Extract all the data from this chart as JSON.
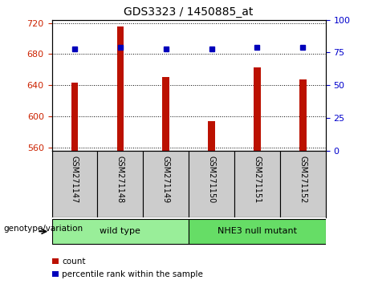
{
  "title": "GDS3323 / 1450885_at",
  "samples": [
    "GSM271147",
    "GSM271148",
    "GSM271149",
    "GSM271150",
    "GSM271151",
    "GSM271152"
  ],
  "count_values": [
    643,
    716,
    651,
    594,
    663,
    647
  ],
  "percentile_values": [
    78,
    79,
    78,
    78,
    79,
    79
  ],
  "ylim_left": [
    556,
    724
  ],
  "yticks_left": [
    560,
    600,
    640,
    680,
    720
  ],
  "ylim_right": [
    0,
    100
  ],
  "yticks_right": [
    0,
    25,
    50,
    75,
    100
  ],
  "bar_color": "#bb1100",
  "dot_color": "#0000bb",
  "groups": [
    {
      "label": "wild type",
      "indices": [
        0,
        1,
        2
      ],
      "color": "#99ee99"
    },
    {
      "label": "NHE3 null mutant",
      "indices": [
        3,
        4,
        5
      ],
      "color": "#66dd66"
    }
  ],
  "group_label": "genotype/variation",
  "legend_count_label": "count",
  "legend_pct_label": "percentile rank within the sample",
  "grid_color": "#000000",
  "tick_color_left": "#cc2200",
  "tick_color_right": "#0000cc",
  "bg_color": "#ffffff",
  "label_bg_color": "#cccccc",
  "base_value": 556
}
